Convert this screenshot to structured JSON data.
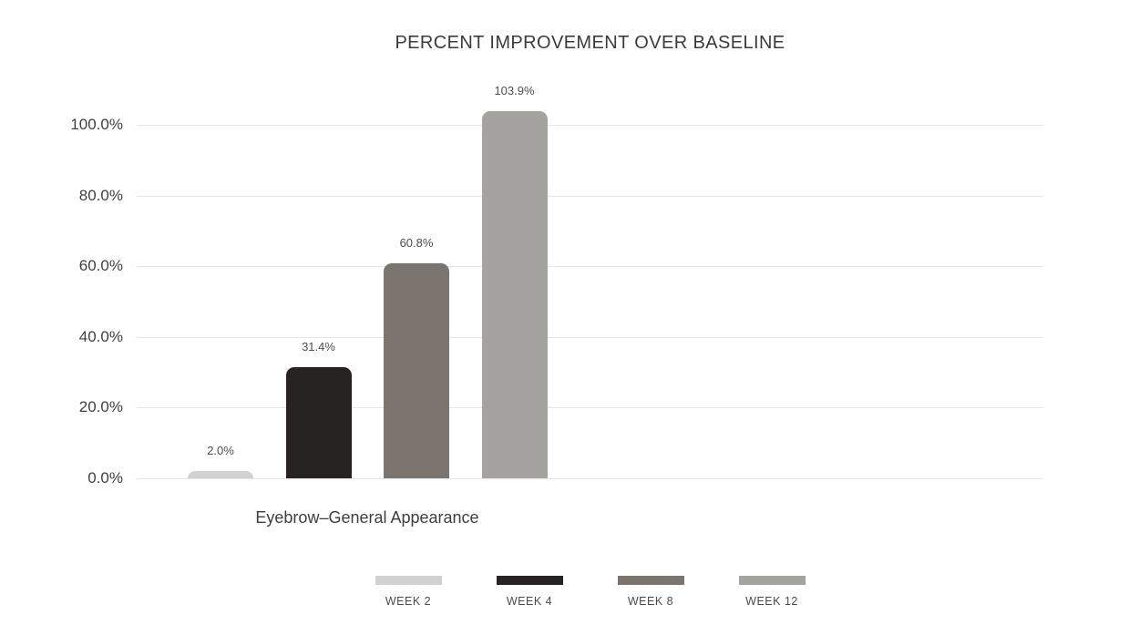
{
  "chart_data": {
    "type": "bar",
    "title": "PERCENT IMPROVEMENT OVER BASELINE",
    "categories": [
      "Eyebrow–General Appearance"
    ],
    "series": [
      {
        "name": "WEEK 2",
        "values": [
          2.0
        ],
        "labels": [
          "2.0%"
        ],
        "color": "#d3d1d0"
      },
      {
        "name": "WEEK 4",
        "values": [
          31.4
        ],
        "labels": [
          "31.4%"
        ],
        "color": "#262322"
      },
      {
        "name": "WEEK 8",
        "values": [
          60.8
        ],
        "labels": [
          "60.8%"
        ],
        "color": "#7c756f"
      },
      {
        "name": "WEEK 12",
        "values": [
          103.9
        ],
        "labels": [
          "103.9%"
        ],
        "color": "#a5a3a0"
      }
    ],
    "yticks": [
      {
        "value": 0,
        "label": "0.0%"
      },
      {
        "value": 20,
        "label": "20.0%"
      },
      {
        "value": 40,
        "label": "40.0%"
      },
      {
        "value": 60,
        "label": "60.0%"
      },
      {
        "value": 80,
        "label": "80.0%"
      },
      {
        "value": 100,
        "label": "100.0%"
      }
    ],
    "ylim": [
      0,
      100
    ],
    "grid": true,
    "legend_position": "bottom",
    "background_color": "#ffffff",
    "gridline_color": "#e6e6e6"
  }
}
